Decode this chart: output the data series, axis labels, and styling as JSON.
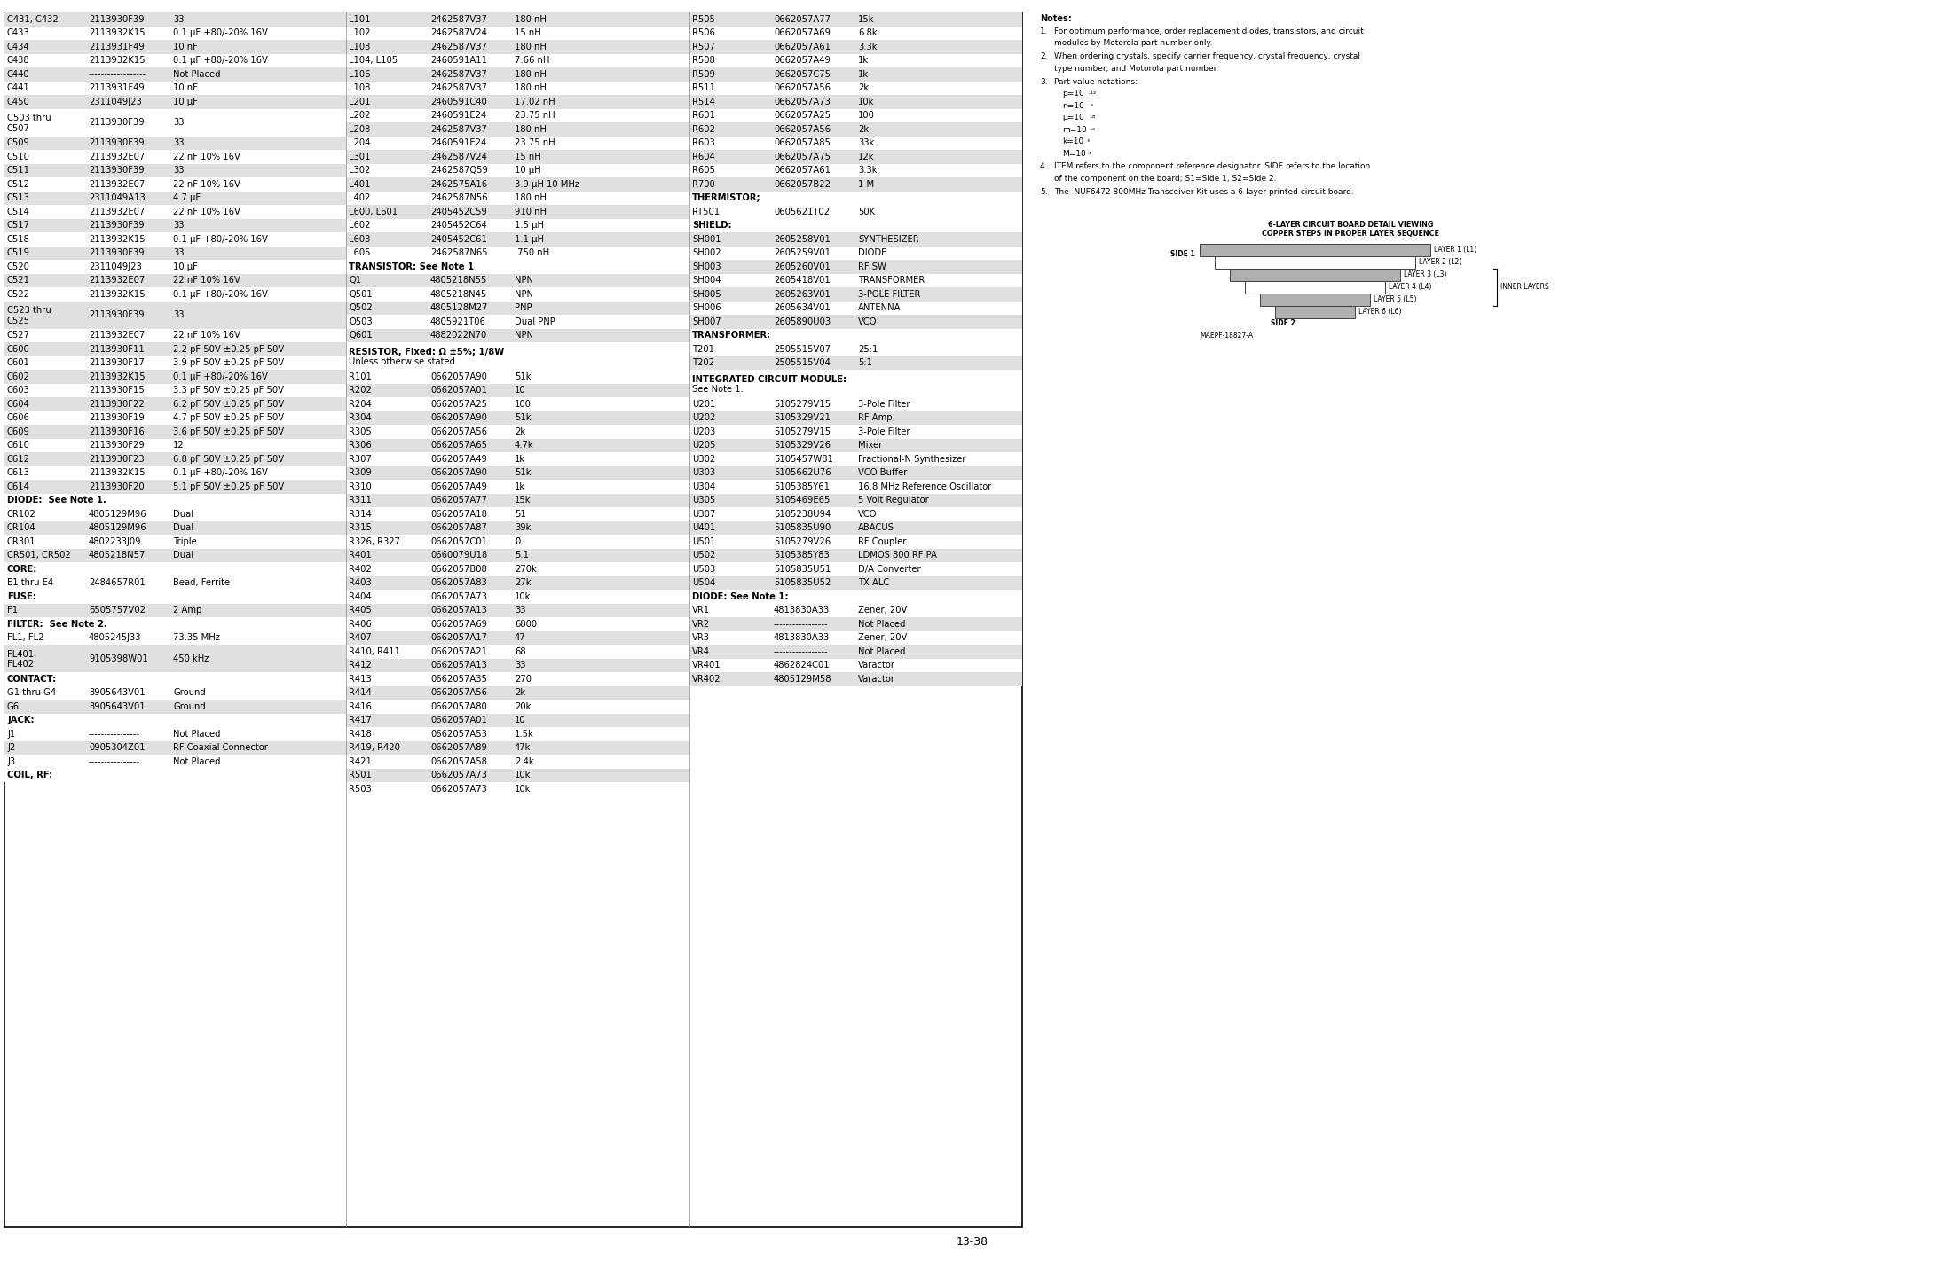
{
  "page_number": "13-38",
  "bg_color": "#ffffff",
  "table_bg_even": "#e0e0e0",
  "table_bg_odd": "#ffffff",
  "col1_rows": [
    [
      "C431, C432",
      "2113930F39",
      "33"
    ],
    [
      "C433",
      "2113932K15",
      "0.1 µF +80/-20% 16V"
    ],
    [
      "C434",
      "2113931F49",
      "10 nF"
    ],
    [
      "C438",
      "2113932K15",
      "0.1 µF +80/-20% 16V"
    ],
    [
      "C440",
      "------------------",
      "Not Placed"
    ],
    [
      "C441",
      "2113931F49",
      "10 nF"
    ],
    [
      "C450",
      "2311049J23",
      "10 µF"
    ],
    [
      "C503 thru|C507",
      "2113930F39",
      "33"
    ],
    [
      "C509",
      "2113930F39",
      "33"
    ],
    [
      "C510",
      "2113932E07",
      "22 nF 10% 16V"
    ],
    [
      "C511",
      "2113930F39",
      "33"
    ],
    [
      "C512",
      "2113932E07",
      "22 nF 10% 16V"
    ],
    [
      "C513",
      "2311049A13",
      "4.7 µF"
    ],
    [
      "C514",
      "2113932E07",
      "22 nF 10% 16V"
    ],
    [
      "C517",
      "2113930F39",
      "33"
    ],
    [
      "C518",
      "2113932K15",
      "0.1 µF +80/-20% 16V"
    ],
    [
      "C519",
      "2113930F39",
      "33"
    ],
    [
      "C520",
      "2311049J23",
      "10 µF"
    ],
    [
      "C521",
      "2113932E07",
      "22 nF 10% 16V"
    ],
    [
      "C522",
      "2113932K15",
      "0.1 µF +80/-20% 16V"
    ],
    [
      "C523 thru|C525",
      "2113930F39",
      "33"
    ],
    [
      "C527",
      "2113932E07",
      "22 nF 10% 16V"
    ],
    [
      "C600",
      "2113930F11",
      "2.2 pF 50V ±0.25 pF 50V"
    ],
    [
      "C601",
      "2113930F17",
      "3.9 pF 50V ±0.25 pF 50V"
    ],
    [
      "C602",
      "2113932K15",
      "0.1 µF +80/-20% 16V"
    ],
    [
      "C603",
      "2113930F15",
      "3.3 pF 50V ±0.25 pF 50V"
    ],
    [
      "C604",
      "2113930F22",
      "6.2 pF 50V ±0.25 pF 50V"
    ],
    [
      "C606",
      "2113930F19",
      "4.7 pF 50V ±0.25 pF 50V"
    ],
    [
      "C609",
      "2113930F16",
      "3.6 pF 50V ±0.25 pF 50V"
    ],
    [
      "C610",
      "2113930F29",
      "12"
    ],
    [
      "C612",
      "2113930F23",
      "6.8 pF 50V ±0.25 pF 50V"
    ],
    [
      "C613",
      "2113932K15",
      "0.1 µF +80/-20% 16V"
    ],
    [
      "C614",
      "2113930F20",
      "5.1 pF 50V ±0.25 pF 50V"
    ],
    [
      "HDR:DIODE:  See Note 1.",
      "",
      ""
    ],
    [
      "CR102",
      "4805129M96",
      "Dual"
    ],
    [
      "CR104",
      "4805129M96",
      "Dual"
    ],
    [
      "CR301",
      "4802233J09",
      "Triple"
    ],
    [
      "CR501, CR502",
      "4805218N57",
      "Dual"
    ],
    [
      "HDR:CORE:",
      "",
      ""
    ],
    [
      "E1 thru E4",
      "2484657R01",
      "Bead, Ferrite"
    ],
    [
      "HDR:FUSE:",
      "",
      ""
    ],
    [
      "F1",
      "6505757V02",
      "2 Amp"
    ],
    [
      "HDR:FILTER:  See Note 2.",
      "",
      ""
    ],
    [
      "FL1, FL2",
      "4805245J33",
      "73.35 MHz"
    ],
    [
      "FL401,|FL402",
      "9105398W01",
      "450 kHz"
    ],
    [
      "HDR:CONTACT:",
      "",
      ""
    ],
    [
      "G1 thru G4",
      "3905643V01",
      "Ground"
    ],
    [
      "G6",
      "3905643V01",
      "Ground"
    ],
    [
      "HDR:JACK:",
      "",
      ""
    ],
    [
      "J1",
      "----------------",
      "Not Placed"
    ],
    [
      "J2",
      "0905304Z01",
      "RF Coaxial Connector"
    ],
    [
      "J3",
      "----------------",
      "Not Placed"
    ],
    [
      "HDR:COIL, RF:",
      "",
      ""
    ]
  ],
  "col2_rows": [
    [
      "L101",
      "2462587V37",
      "180 nH"
    ],
    [
      "L102",
      "2462587V24",
      "15 nH"
    ],
    [
      "L103",
      "2462587V37",
      "180 nH"
    ],
    [
      "L104, L105",
      "2460591A11",
      "7.66 nH"
    ],
    [
      "L106",
      "2462587V37",
      "180 nH"
    ],
    [
      "L108",
      "2462587V37",
      "180 nH"
    ],
    [
      "L201",
      "2460591C40",
      "17.02 nH"
    ],
    [
      "L202",
      "2460591E24",
      "23.75 nH"
    ],
    [
      "L203",
      "2462587V37",
      "180 nH"
    ],
    [
      "L204",
      "2460591E24",
      "23.75 nH"
    ],
    [
      "L301",
      "2462587V24",
      "15 nH"
    ],
    [
      "L302",
      "2462587Q59",
      "10 µH"
    ],
    [
      "L401",
      "2462575A16",
      "3.9 µH 10 MHz"
    ],
    [
      "L402",
      "2462587N56",
      "180 nH"
    ],
    [
      "L600, L601",
      "2405452C59",
      "910 nH"
    ],
    [
      "L602",
      "2405452C64",
      "1.5 µH"
    ],
    [
      "L603",
      "2405452C61",
      "1.1 µH"
    ],
    [
      "L605",
      "2462587N65",
      " 750 nH"
    ],
    [
      "HDR:TRANSISTOR: See Note 1",
      "",
      ""
    ],
    [
      "Q1",
      "4805218N55",
      "NPN"
    ],
    [
      "Q501",
      "4805218N45",
      "NPN"
    ],
    [
      "Q502",
      "4805128M27",
      "PNP"
    ],
    [
      "Q503",
      "4805921T06",
      "Dual PNP"
    ],
    [
      "Q601",
      "4882022N70",
      "NPN"
    ],
    [
      "HDR2:RESISTOR, Fixed: Ω ±5%; 1/8W|Unless otherwise stated",
      "",
      ""
    ],
    [
      "R101",
      "0662057A90",
      "51k"
    ],
    [
      "R202",
      "0662057A01",
      "10"
    ],
    [
      "R204",
      "0662057A25",
      "100"
    ],
    [
      "R304",
      "0662057A90",
      "51k"
    ],
    [
      "R305",
      "0662057A56",
      "2k"
    ],
    [
      "R306",
      "0662057A65",
      "4.7k"
    ],
    [
      "R307",
      "0662057A49",
      "1k"
    ],
    [
      "R309",
      "0662057A90",
      "51k"
    ],
    [
      "R310",
      "0662057A49",
      "1k"
    ],
    [
      "R311",
      "0662057A77",
      "15k"
    ],
    [
      "R314",
      "0662057A18",
      "51"
    ],
    [
      "R315",
      "0662057A87",
      "39k"
    ],
    [
      "R326, R327",
      "0662057C01",
      "0"
    ],
    [
      "R401",
      "0660079U18",
      "5.1"
    ],
    [
      "R402",
      "0662057B08",
      "270k"
    ],
    [
      "R403",
      "0662057A83",
      "27k"
    ],
    [
      "R404",
      "0662057A73",
      "10k"
    ],
    [
      "R405",
      "0662057A13",
      "33"
    ],
    [
      "R406",
      "0662057A69",
      "6800"
    ],
    [
      "R407",
      "0662057A17",
      "47"
    ],
    [
      "R410, R411",
      "0662057A21",
      "68"
    ],
    [
      "R412",
      "0662057A13",
      "33"
    ],
    [
      "R413",
      "0662057A35",
      "270"
    ],
    [
      "R414",
      "0662057A56",
      "2k"
    ],
    [
      "R416",
      "0662057A80",
      "20k"
    ],
    [
      "R417",
      "0662057A01",
      "10"
    ],
    [
      "R418",
      "0662057A53",
      "1.5k"
    ],
    [
      "R419, R420",
      "0662057A89",
      "47k"
    ],
    [
      "R421",
      "0662057A58",
      "2.4k"
    ],
    [
      "R501",
      "0662057A73",
      "10k"
    ],
    [
      "R503",
      "0662057A73",
      "10k"
    ]
  ],
  "col3_rows": [
    [
      "R505",
      "0662057A77",
      "15k"
    ],
    [
      "R506",
      "0662057A69",
      "6.8k"
    ],
    [
      "R507",
      "0662057A61",
      "3.3k"
    ],
    [
      "R508",
      "0662057A49",
      "1k"
    ],
    [
      "R509",
      "0662057C75",
      "1k"
    ],
    [
      "R511",
      "0662057A56",
      "2k"
    ],
    [
      "R514",
      "0662057A73",
      "10k"
    ],
    [
      "R601",
      "0662057A25",
      "100"
    ],
    [
      "R602",
      "0662057A56",
      "2k"
    ],
    [
      "R603",
      "0662057A85",
      "33k"
    ],
    [
      "R604",
      "0662057A75",
      "12k"
    ],
    [
      "R605",
      "0662057A61",
      "3.3k"
    ],
    [
      "R700",
      "0662057B22",
      "1 M"
    ],
    [
      "HDR:THERMISTOR;",
      "",
      ""
    ],
    [
      "RT501",
      "0605621T02",
      "50K"
    ],
    [
      "HDR:SHIELD:",
      "",
      ""
    ],
    [
      "SH001",
      "2605258V01",
      "SYNTHESIZER"
    ],
    [
      "SH002",
      "2605259V01",
      "DIODE"
    ],
    [
      "SH003",
      "2605260V01",
      "RF SW"
    ],
    [
      "SH004",
      "2605418V01",
      "TRANSFORMER"
    ],
    [
      "SH005",
      "2605263V01",
      "3-POLE FILTER"
    ],
    [
      "SH006",
      "2605634V01",
      "ANTENNA"
    ],
    [
      "SH007",
      "2605890U03",
      "VCO"
    ],
    [
      "HDR:TRANSFORMER:",
      "",
      ""
    ],
    [
      "T201",
      "2505515V07",
      "25:1"
    ],
    [
      "T202",
      "2505515V04",
      "5:1"
    ],
    [
      "HDR2:INTEGRATED CIRCUIT MODULE:|See Note 1.",
      "",
      ""
    ],
    [
      "U201",
      "5105279V15",
      "3-Pole Filter"
    ],
    [
      "U202",
      "5105329V21",
      "RF Amp"
    ],
    [
      "U203",
      "5105279V15",
      "3-Pole Filter"
    ],
    [
      "U205",
      "5105329V26",
      "Mixer"
    ],
    [
      "U302",
      "5105457W81",
      "Fractional-N Synthesizer"
    ],
    [
      "U303",
      "5105662U76",
      "VCO Buffer"
    ],
    [
      "U304",
      "5105385Y61",
      "16.8 MHz Reference Oscillator"
    ],
    [
      "U305",
      "5105469E65",
      "5 Volt Regulator"
    ],
    [
      "U307",
      "5105238U94",
      "VCO"
    ],
    [
      "U401",
      "5105835U90",
      "ABACUS"
    ],
    [
      "U501",
      "5105279V26",
      "RF Coupler"
    ],
    [
      "U502",
      "5105385Y83",
      "LDMOS 800 RF PA"
    ],
    [
      "U503",
      "5105835U51",
      "D/A Converter"
    ],
    [
      "U504",
      "5105835U52",
      "TX ALC"
    ],
    [
      "HDR:DIODE: See Note 1:",
      "",
      ""
    ],
    [
      "VR1",
      "4813830A33",
      "Zener, 20V"
    ],
    [
      "VR2",
      "-----------------",
      "Not Placed"
    ],
    [
      "VR3",
      "4813830A33",
      "Zener, 20V"
    ],
    [
      "VR4",
      "-----------------",
      "Not Placed"
    ],
    [
      "VR401",
      "4862824C01",
      "Varactor"
    ],
    [
      "VR402",
      "4805129M58",
      "Varactor"
    ]
  ]
}
